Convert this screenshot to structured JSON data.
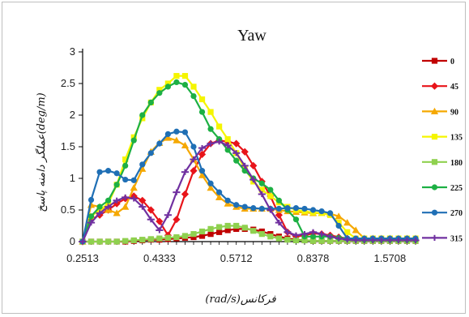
{
  "chart_data": {
    "type": "line",
    "title": "Yaw",
    "xlabel": "فرکانس(rad/s)",
    "ylabel": "(deg/m)عملگر دامنه پاسخ",
    "ylim": [
      0,
      3
    ],
    "yticks": [
      "0",
      "0.5",
      "1",
      "1.5",
      "2",
      "2.5",
      "3"
    ],
    "xtick_labels": [
      "0.2513",
      "0.4333",
      "0.5712",
      "0.8378",
      "1.5708"
    ],
    "grid": false,
    "legend_position": "right",
    "point_count": 40,
    "series": [
      {
        "name": "0",
        "color": "#c00000",
        "marker": "square",
        "values": [
          0,
          0,
          0,
          0,
          0,
          0,
          0.01,
          0.02,
          0.03,
          0.03,
          0.04,
          0.05,
          0.06,
          0.07,
          0.09,
          0.12,
          0.15,
          0.18,
          0.2,
          0.2,
          0.19,
          0.16,
          0.12,
          0.08,
          0.05,
          0.03,
          0.02,
          0.01,
          0.01,
          0.01,
          0.01,
          0.01,
          0.01,
          0.01,
          0.01,
          0.01,
          0.01,
          0.01,
          0.01,
          0.01
        ]
      },
      {
        "name": "45",
        "color": "#e8141a",
        "marker": "diamond",
        "values": [
          0,
          0.35,
          0.42,
          0.5,
          0.6,
          0.68,
          0.72,
          0.65,
          0.5,
          0.32,
          0.1,
          0.35,
          0.75,
          1.12,
          1.38,
          1.55,
          1.6,
          1.58,
          1.55,
          1.42,
          1.2,
          0.95,
          0.72,
          0.42,
          0.15,
          0.08,
          0.1,
          0.13,
          0.12,
          0.1,
          0.07,
          0.05,
          0.03,
          0.02,
          0.02,
          0.02,
          0.02,
          0.02,
          0.02,
          0.02
        ]
      },
      {
        "name": "90",
        "color": "#f5a800",
        "marker": "triangle",
        "values": [
          0,
          0.58,
          0.55,
          0.5,
          0.45,
          0.55,
          0.85,
          1.15,
          1.42,
          1.56,
          1.64,
          1.6,
          1.52,
          1.3,
          1.05,
          0.85,
          0.7,
          0.6,
          0.55,
          0.52,
          0.52,
          0.52,
          0.52,
          0.5,
          0.48,
          0.47,
          0.46,
          0.45,
          0.45,
          0.44,
          0.4,
          0.3,
          0.18,
          0.05,
          0.05,
          0.05,
          0.05,
          0.05,
          0.05,
          0.05
        ]
      },
      {
        "name": "135",
        "color": "#f5f500",
        "marker": "square",
        "values": [
          0,
          0.4,
          0.5,
          0.6,
          0.9,
          1.3,
          1.65,
          1.95,
          2.2,
          2.4,
          2.5,
          2.62,
          2.62,
          2.45,
          2.25,
          2.05,
          1.82,
          1.62,
          1.4,
          1.15,
          0.95,
          0.82,
          0.72,
          0.62,
          0.55,
          0.5,
          0.48,
          0.46,
          0.45,
          0.42,
          0.3,
          0.15,
          0.05,
          0.05,
          0.05,
          0.05,
          0.05,
          0.05,
          0.05,
          0.05
        ]
      },
      {
        "name": "180",
        "color": "#8fd14f",
        "marker": "square",
        "values": [
          0,
          0,
          0,
          0,
          0,
          0.01,
          0.02,
          0.03,
          0.04,
          0.05,
          0.06,
          0.07,
          0.09,
          0.12,
          0.16,
          0.2,
          0.23,
          0.25,
          0.25,
          0.22,
          0.17,
          0.12,
          0.08,
          0.05,
          0.03,
          0.02,
          0.02,
          0.01,
          0.01,
          0.01,
          0.01,
          0.01,
          0.01,
          0.01,
          0.01,
          0.01,
          0.01,
          0.01,
          0.01,
          0.01
        ]
      },
      {
        "name": "225",
        "color": "#1db044",
        "marker": "circle",
        "values": [
          0,
          0.4,
          0.55,
          0.65,
          0.9,
          1.2,
          1.6,
          2.0,
          2.2,
          2.35,
          2.45,
          2.52,
          2.48,
          2.3,
          2.05,
          1.78,
          1.62,
          1.45,
          1.28,
          1.12,
          1.0,
          0.92,
          0.82,
          0.65,
          0.5,
          0.35,
          0.08,
          0.08,
          0.08,
          0.08,
          0.06,
          0.05,
          0.04,
          0.03,
          0.03,
          0.03,
          0.03,
          0.03,
          0.03,
          0.03
        ]
      },
      {
        "name": "270",
        "color": "#1f6fb5",
        "marker": "circle",
        "values": [
          0,
          0.66,
          1.1,
          1.12,
          1.08,
          0.98,
          0.97,
          1.22,
          1.4,
          1.55,
          1.7,
          1.74,
          1.73,
          1.5,
          1.12,
          0.92,
          0.78,
          0.65,
          0.58,
          0.55,
          0.53,
          0.52,
          0.52,
          0.52,
          0.53,
          0.53,
          0.52,
          0.5,
          0.48,
          0.45,
          0.25,
          0.05,
          0.05,
          0.05,
          0.05,
          0.05,
          0.05,
          0.05,
          0.05,
          0.05
        ]
      },
      {
        "name": "315",
        "color": "#7030a0",
        "marker": "cross",
        "values": [
          0,
          0.3,
          0.45,
          0.55,
          0.65,
          0.7,
          0.68,
          0.55,
          0.35,
          0.18,
          0.42,
          0.78,
          1.1,
          1.3,
          1.48,
          1.55,
          1.58,
          1.52,
          1.4,
          1.2,
          0.98,
          0.75,
          0.5,
          0.3,
          0.15,
          0.1,
          0.12,
          0.15,
          0.12,
          0.08,
          0.05,
          0.03,
          0.02,
          0.02,
          0.02,
          0.02,
          0.02,
          0.02,
          0.02,
          0.02
        ]
      }
    ]
  }
}
